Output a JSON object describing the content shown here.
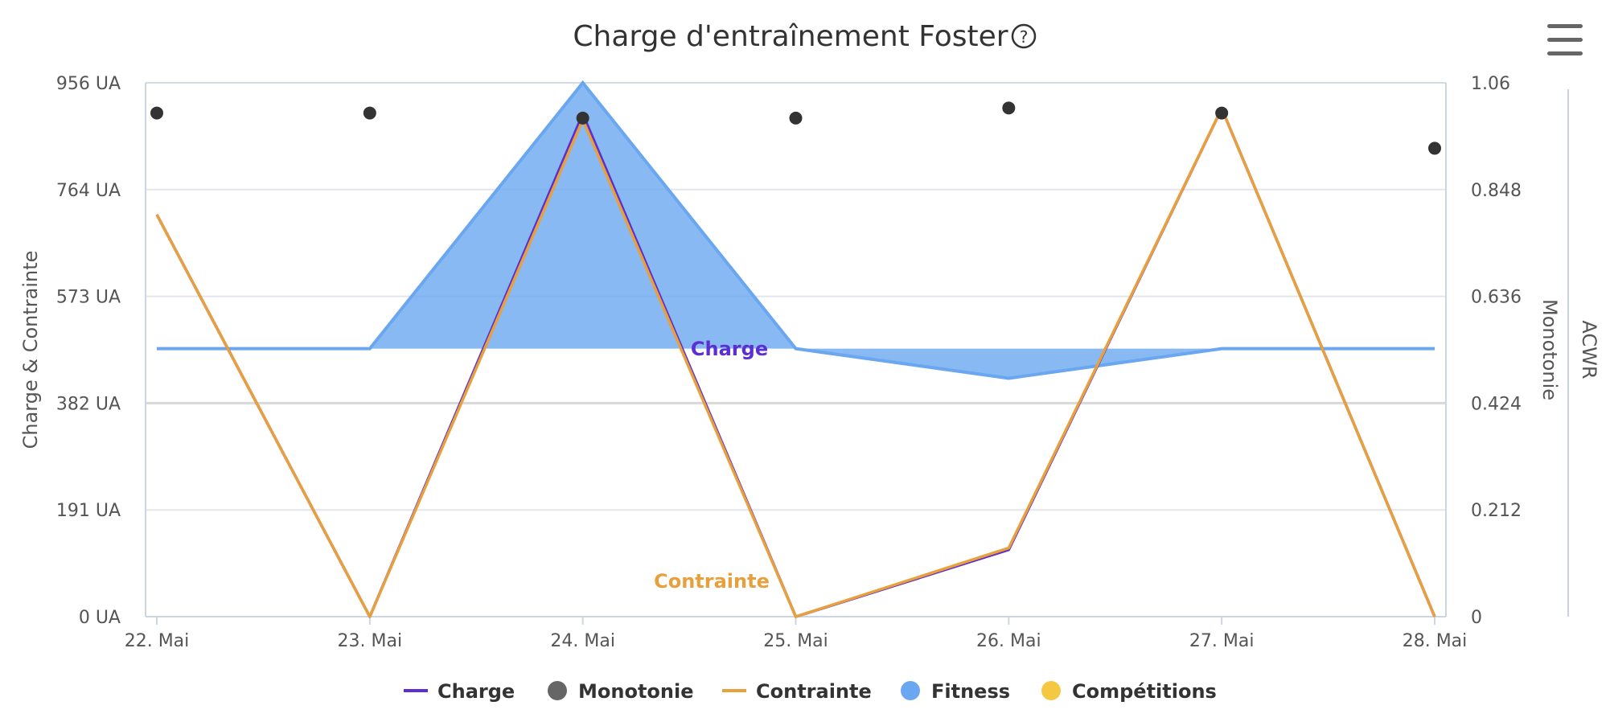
{
  "chart_data": {
    "type": "line",
    "title": "Charge d'entraînement Foster",
    "categories": [
      "22. Mai",
      "23. Mai",
      "24. Mai",
      "25. Mai",
      "26. Mai",
      "27. Mai",
      "28. Mai"
    ],
    "y_left": {
      "label": "Charge & Contrainte",
      "ticks": [
        "0 UA",
        "191 UA",
        "382 UA",
        "573 UA",
        "764 UA",
        "956 UA"
      ],
      "range": [
        0,
        956
      ]
    },
    "y_right_1": {
      "label": "Monotonie",
      "ticks": [
        "0",
        "0.212",
        "0.424",
        "0.636",
        "0.848",
        "1.06"
      ],
      "range": [
        0,
        1.06
      ]
    },
    "y_right_2": {
      "label": "ACWR"
    },
    "fitness_baseline": 480,
    "series": [
      {
        "name": "Fitness",
        "type": "area",
        "color": "#6aa7f0",
        "values": [
          480,
          480,
          956,
          480,
          427,
          480,
          480
        ]
      },
      {
        "name": "Charge",
        "type": "line",
        "color": "#5b2fd1",
        "values": [
          720,
          0,
          900,
          0,
          120,
          910,
          0
        ]
      },
      {
        "name": "Contrainte",
        "type": "line",
        "color": "#e8a03c",
        "values": [
          720,
          0,
          890,
          0,
          123,
          910,
          0
        ]
      },
      {
        "name": "Monotonie",
        "type": "scatter",
        "color": "#333333",
        "values": [
          1.0,
          1.0,
          0.99,
          0.99,
          1.01,
          1.0,
          0.93
        ]
      },
      {
        "name": "Compétitions",
        "type": "scatter",
        "color": "#f5c842",
        "values": []
      }
    ],
    "series_labels": {
      "charge": "Charge",
      "contrainte": "Contrainte"
    },
    "legend": {
      "position": "bottom",
      "items": [
        {
          "name": "Charge",
          "symbol": "line",
          "color": "#5b2fd1"
        },
        {
          "name": "Monotonie",
          "symbol": "dot",
          "color": "#666666"
        },
        {
          "name": "Contrainte",
          "symbol": "line",
          "color": "#e8a03c"
        },
        {
          "name": "Fitness",
          "symbol": "dot",
          "color": "#6aa7f0"
        },
        {
          "name": "Compétitions",
          "symbol": "dot",
          "color": "#f5c842"
        }
      ]
    },
    "grid": true
  },
  "icons": {
    "help": "help-circle-icon",
    "menu": "hamburger-menu-icon"
  }
}
